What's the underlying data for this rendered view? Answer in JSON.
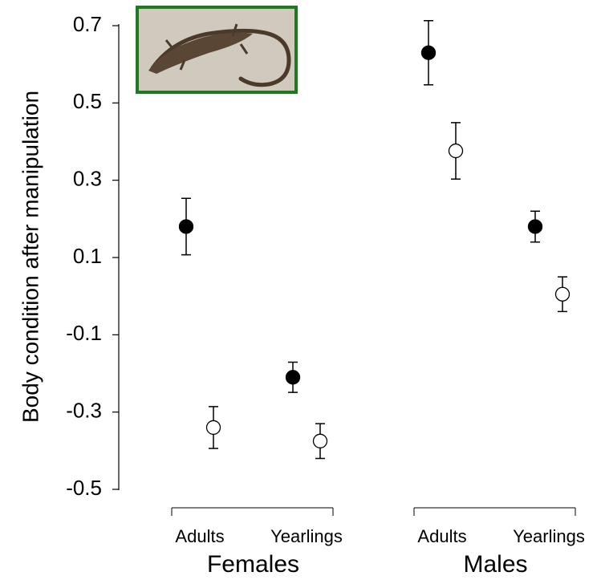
{
  "chart_data": {
    "type": "errorbar",
    "y_label": "Body condition after manipulation",
    "groups": [
      "Females",
      "Males"
    ],
    "categories": [
      "Adults",
      "Yearlings",
      "Adults",
      "Yearlings"
    ],
    "series": [
      {
        "color": "#000000",
        "values": [
          0.18,
          -0.21,
          0.63,
          0.18
        ],
        "errors": [
          0.073,
          0.039,
          0.083,
          0.04
        ]
      },
      {
        "color": "#ffffff",
        "values": [
          -0.34,
          -0.375,
          0.376,
          0.005
        ],
        "errors": [
          0.054,
          0.045,
          0.073,
          0.045
        ]
      }
    ],
    "ylim": [
      -0.5,
      0.7
    ],
    "yticks": [
      0.7,
      0.5,
      0.3,
      0.1,
      -0.1,
      -0.3,
      -0.5
    ],
    "grid": false
  }
}
